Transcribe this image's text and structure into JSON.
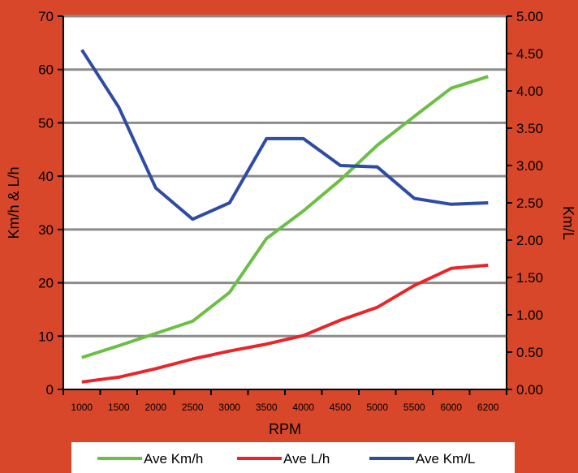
{
  "chart_data": {
    "type": "line",
    "xlabel": "RPM",
    "ylabel_left": "Km/h & L/h",
    "ylabel_right": "Km/L",
    "categories": [
      "1000",
      "1500",
      "2000",
      "2500",
      "3000",
      "3500",
      "4000",
      "4500",
      "5000",
      "5500",
      "6000",
      "6200"
    ],
    "y_left": {
      "min": 0,
      "max": 70,
      "ticks": [
        "0",
        "10",
        "20",
        "30",
        "40",
        "50",
        "60",
        "70"
      ]
    },
    "y_right": {
      "min": 0,
      "max": 5,
      "ticks": [
        "0.00",
        "0.50",
        "1.00",
        "1.50",
        "2.00",
        "2.50",
        "3.00",
        "3.50",
        "4.00",
        "4.50",
        "5.00"
      ]
    },
    "grid": true,
    "legend_position": "bottom",
    "series": [
      {
        "name": "Ave Km/h",
        "axis": "left",
        "color": "#6CBF45",
        "values": [
          6.0,
          8.2,
          10.5,
          12.8,
          18.2,
          28.3,
          33.5,
          39.3,
          45.8,
          51.2,
          56.5,
          58.7
        ]
      },
      {
        "name": "Ave L/h",
        "axis": "left",
        "color": "#E8262A",
        "values": [
          1.4,
          2.3,
          3.9,
          5.7,
          7.2,
          8.5,
          10.1,
          13.0,
          15.4,
          19.5,
          22.7,
          23.3
        ]
      },
      {
        "name": "Ave Km/L",
        "axis": "right",
        "color": "#2F4CA3",
        "values": [
          4.55,
          3.78,
          2.7,
          2.28,
          2.5,
          3.36,
          3.36,
          3.0,
          2.98,
          2.56,
          2.48,
          2.5
        ]
      }
    ]
  }
}
